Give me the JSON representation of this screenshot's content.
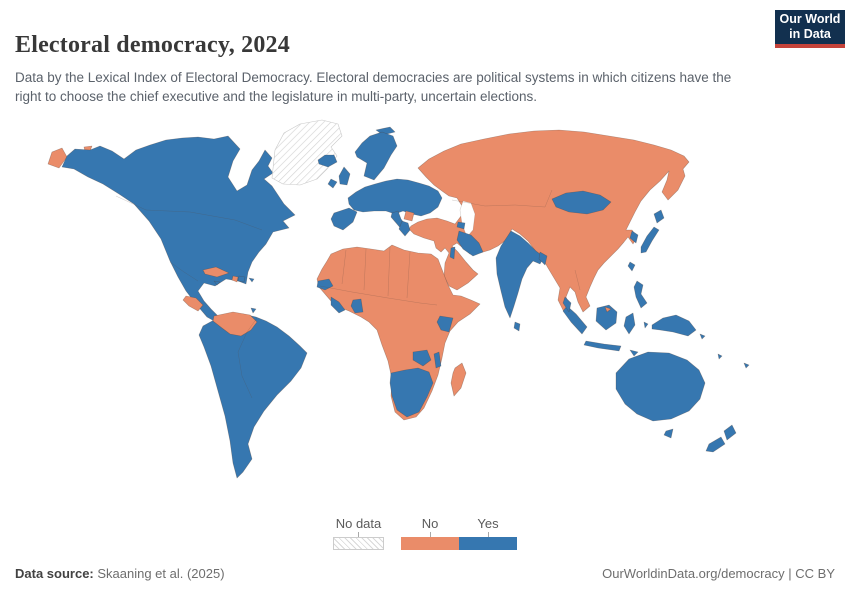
{
  "header": {
    "title": "Electoral democracy, 2024",
    "subtitle": "Data by the Lexical Index of Electoral Democracy. Electoral democracies are political systems in which citizens have the right to choose the chief executive and the legislature in multi-party, uncertain elections.",
    "logo": {
      "line1": "Our World",
      "line2": "in Data"
    }
  },
  "legend": {
    "no_data_label": "No data",
    "no_label": "No",
    "yes_label": "Yes"
  },
  "footer": {
    "source_label": "Data source:",
    "source_value": " Skaaning et al. (2025)",
    "rights": "OurWorldinData.org/democracy | CC BY"
  },
  "chart_data": {
    "type": "choropleth_world_map",
    "title": "Electoral democracy, 2024",
    "year": 2024,
    "categories": [
      "No data",
      "No",
      "Yes"
    ],
    "colors": {
      "Yes": "#3677b0",
      "No": "#ea8c69",
      "No data": "hatch"
    },
    "legend_position": "bottom-center",
    "regions": {
      "Greenland": "No data",
      "Canada": "Yes",
      "United States": "Yes",
      "Mexico": "Yes",
      "Guatemala": "Yes",
      "Honduras": "Yes",
      "Nicaragua": "No",
      "Costa Rica": "Yes",
      "Panama": "Yes",
      "Cuba": "No",
      "Haiti": "No",
      "Dominican Republic": "Yes",
      "Jamaica": "Yes",
      "Puerto Rico": "Yes",
      "Trinidad and Tobago": "Yes",
      "Colombia": "Yes",
      "Venezuela": "No",
      "Ecuador": "Yes",
      "Peru": "Yes",
      "Brazil": "Yes",
      "Bolivia": "Yes",
      "Paraguay": "Yes",
      "Chile": "Yes",
      "Argentina": "Yes",
      "Uruguay": "Yes",
      "Suriname": "Yes",
      "Iceland": "Yes",
      "Ireland": "Yes",
      "United Kingdom": "Yes",
      "Norway": "Yes",
      "Sweden": "Yes",
      "Finland": "Yes",
      "Denmark": "Yes",
      "Germany": "Yes",
      "France": "Yes",
      "Spain": "Yes",
      "Portugal": "Yes",
      "Italy": "Yes",
      "Switzerland": "Yes",
      "Austria": "Yes",
      "Belgium": "Yes",
      "Netherlands": "Yes",
      "Poland": "Yes",
      "Czechia": "Yes",
      "Slovakia": "Yes",
      "Hungary": "Yes",
      "Romania": "Yes",
      "Bulgaria": "Yes",
      "Greece": "Yes",
      "Ukraine": "Yes",
      "Moldova": "Yes",
      "Estonia": "Yes",
      "Latvia": "Yes",
      "Lithuania": "Yes",
      "Croatia": "Yes",
      "Albania": "Yes",
      "North Macedonia": "Yes",
      "Serbia": "No",
      "Belarus": "No",
      "Russia": "No",
      "Turkey": "No",
      "Georgia": "No",
      "Azerbaijan": "No",
      "Armenia": "Yes",
      "Syria": "No",
      "Jordan": "No",
      "Israel": "Yes",
      "Iraq": "Yes",
      "Iran": "No",
      "Saudi Arabia": "No",
      "Yemen": "No",
      "Oman": "No",
      "United Arab Emirates": "No",
      "Qatar": "No",
      "Kuwait": "No",
      "Kazakhstan": "No",
      "Uzbekistan": "No",
      "Turkmenistan": "No",
      "Kyrgyzstan": "No",
      "Tajikistan": "No",
      "Afghanistan": "No",
      "Pakistan": "No",
      "India": "Yes",
      "Sri Lanka": "Yes",
      "Bangladesh": "Yes",
      "China": "No",
      "Mongolia": "Yes",
      "North Korea": "No",
      "South Korea": "Yes",
      "Japan": "Yes",
      "Taiwan": "Yes",
      "Philippines": "Yes",
      "Myanmar": "No",
      "Thailand": "No",
      "Laos": "No",
      "Vietnam": "No",
      "Cambodia": "No",
      "Brunei": "No",
      "Malaysia": "Yes",
      "Indonesia": "Yes",
      "Timor-Leste": "Yes",
      "Papua New Guinea": "Yes",
      "Australia": "Yes",
      "New Zealand": "Yes",
      "Fiji": "Yes",
      "Solomon Islands": "Yes",
      "Vanuatu": "Yes",
      "Morocco": "No",
      "Algeria": "No",
      "Tunisia": "No",
      "Libya": "No",
      "Egypt": "No",
      "Mauritania": "No",
      "Mali": "No",
      "Niger": "No",
      "Chad": "No",
      "Sudan": "No",
      "South Sudan": "No",
      "Ethiopia": "No",
      "Eritrea": "No",
      "Somalia": "No",
      "Senegal": "Yes",
      "Gambia": "No",
      "Guinea": "No",
      "Sierra Leone": "Yes",
      "Liberia": "Yes",
      "Cote d'Ivoire": "No",
      "Ghana": "Yes",
      "Togo": "No",
      "Benin": "No",
      "Burkina Faso": "No",
      "Nigeria": "No",
      "Cameroon": "No",
      "Central African Republic": "No",
      "Gabon": "No",
      "Congo": "No",
      "Democratic Republic of Congo": "No",
      "Uganda": "No",
      "Kenya": "Yes",
      "Rwanda": "No",
      "Burundi": "No",
      "Tanzania": "No",
      "Angola": "No",
      "Zambia": "Yes",
      "Malawi": "Yes",
      "Mozambique": "No",
      "Zimbabwe": "No",
      "Namibia": "Yes",
      "Botswana": "Yes",
      "South Africa": "Yes",
      "Lesotho": "Yes",
      "Madagascar": "No"
    }
  }
}
